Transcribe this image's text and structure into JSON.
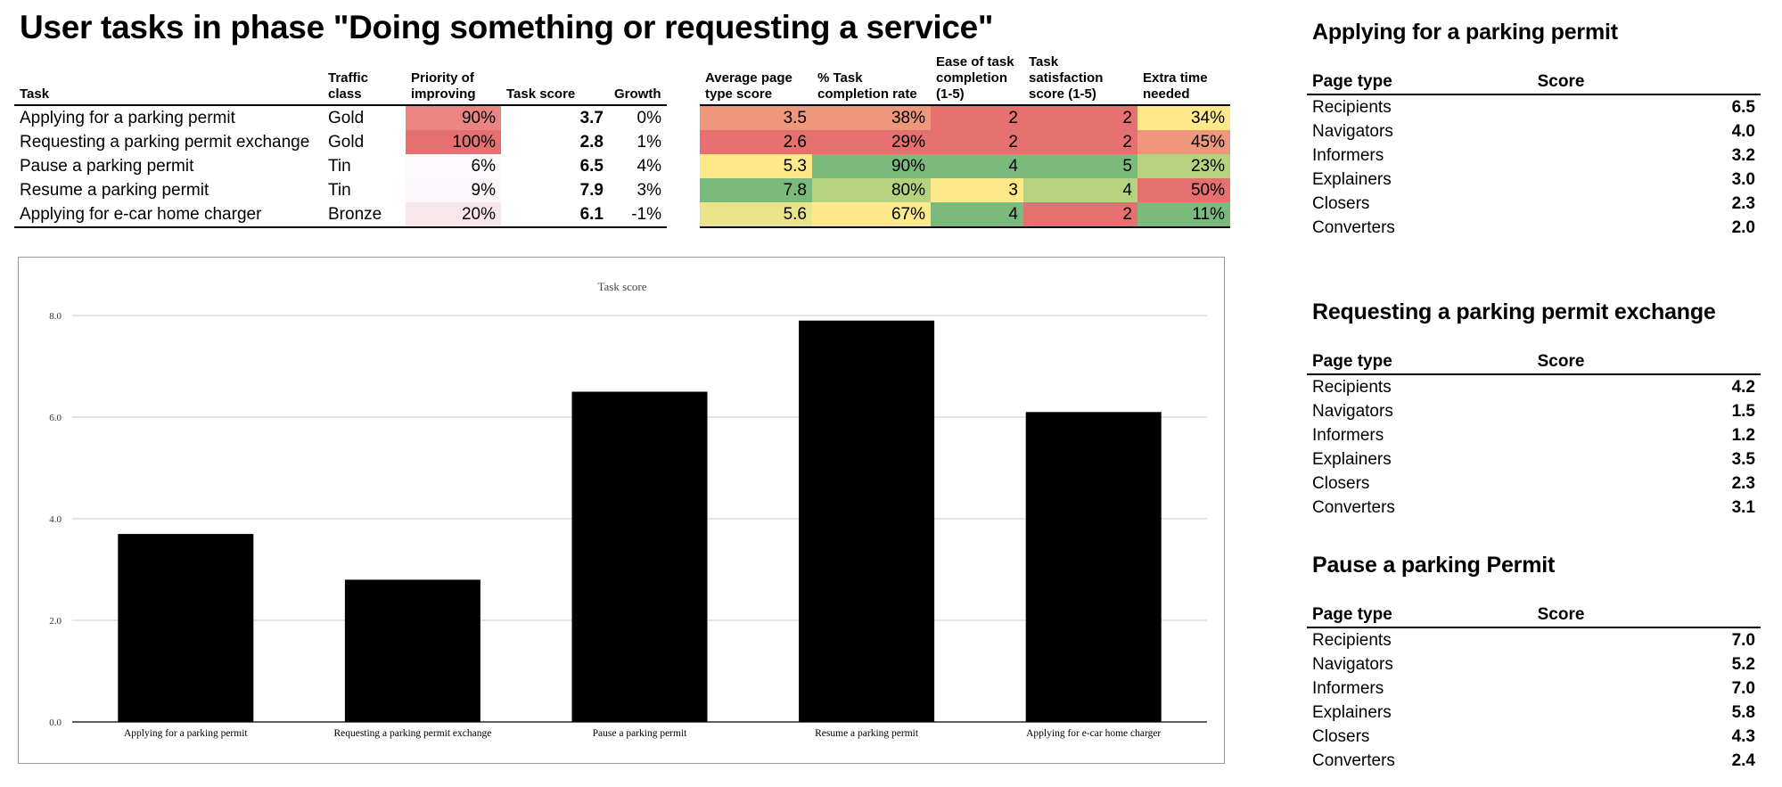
{
  "page_title": "User tasks in phase \"Doing something or requesting a service\"",
  "task_table": {
    "headers": [
      "Task",
      "Traffic class",
      "Priority of improving",
      "Task score",
      "Growth"
    ],
    "rows": [
      {
        "task": "Applying for a parking permit",
        "traffic_class": "Gold",
        "priority": "90%",
        "task_score": "3.7",
        "growth": "0%"
      },
      {
        "task": "Requesting a parking permit exchange",
        "traffic_class": "Gold",
        "priority": "100%",
        "task_score": "2.8",
        "growth": "1%"
      },
      {
        "task": "Pause a parking permit",
        "traffic_class": "Tin",
        "priority": "6%",
        "task_score": "6.5",
        "growth": "4%"
      },
      {
        "task": "Resume a parking permit",
        "traffic_class": "Tin",
        "priority": "9%",
        "task_score": "7.9",
        "growth": "3%"
      },
      {
        "task": "Applying for  e-car home charger",
        "traffic_class": "Bronze",
        "priority": "20%",
        "task_score": "6.1",
        "growth": "-1%"
      }
    ],
    "priority_colors": [
      "#ea8584",
      "#e67070",
      "#fcfafd",
      "#fbf6f9",
      "#f9e6eb"
    ]
  },
  "metric_table": {
    "headers": [
      "Average page type score",
      "% Task completion rate",
      "Ease of task completion (1-5)",
      "Task satisfaction score (1-5)",
      "Extra time needed"
    ],
    "rows": [
      [
        "3.5",
        "38%",
        "2",
        "2",
        "34%"
      ],
      [
        "2.6",
        "29%",
        "2",
        "2",
        "45%"
      ],
      [
        "5.3",
        "90%",
        "4",
        "5",
        "23%"
      ],
      [
        "7.8",
        "80%",
        "3",
        "4",
        "50%"
      ],
      [
        "5.6",
        "67%",
        "4",
        "2",
        "11%"
      ]
    ],
    "cell_colors": [
      [
        "#ee977c",
        "#ee977c",
        "#e67070",
        "#e67070",
        "#fde98a"
      ],
      [
        "#e67070",
        "#e67070",
        "#e67070",
        "#e67070",
        "#ee977c"
      ],
      [
        "#fde98a",
        "#7aba7a",
        "#7aba7a",
        "#7aba7a",
        "#b5d37f"
      ],
      [
        "#7aba7a",
        "#b5d37f",
        "#fde98a",
        "#b5d37f",
        "#e67070"
      ],
      [
        "#e9e38a",
        "#fde98a",
        "#7aba7a",
        "#e67070",
        "#7aba7a"
      ]
    ]
  },
  "chart_data": {
    "type": "bar",
    "title": "Task score",
    "categories": [
      "Applying for a parking permit",
      "Requesting a parking permit exchange",
      "Pause a parking permit",
      "Resume a parking permit",
      "Applying for  e-car home charger"
    ],
    "values": [
      3.7,
      2.8,
      6.5,
      7.9,
      6.1
    ],
    "ylim": [
      0,
      8
    ],
    "yticks": [
      "0.0",
      "2.0",
      "4.0",
      "6.0",
      "8.0"
    ],
    "grid": true,
    "bar_color": "#000000"
  },
  "breakdowns": [
    {
      "title": "Applying for a parking permit",
      "col_page_type": "Page type",
      "col_score": "Score",
      "rows": [
        {
          "page_type": "Recipients",
          "score": "6.5"
        },
        {
          "page_type": "Navigators",
          "score": "4.0"
        },
        {
          "page_type": "Informers",
          "score": "3.2"
        },
        {
          "page_type": "Explainers",
          "score": "3.0"
        },
        {
          "page_type": "Closers",
          "score": "2.3"
        },
        {
          "page_type": "Converters",
          "score": "2.0"
        }
      ]
    },
    {
      "title": "Requesting a parking permit exchange",
      "col_page_type": "Page type",
      "col_score": "Score",
      "rows": [
        {
          "page_type": "Recipients",
          "score": "4.2"
        },
        {
          "page_type": "Navigators",
          "score": "1.5"
        },
        {
          "page_type": "Informers",
          "score": "1.2"
        },
        {
          "page_type": "Explainers",
          "score": "3.5"
        },
        {
          "page_type": "Closers",
          "score": "2.3"
        },
        {
          "page_type": "Converters",
          "score": "3.1"
        }
      ]
    },
    {
      "title": "Pause a parking Permit",
      "col_page_type": "Page type",
      "col_score": "Score",
      "rows": [
        {
          "page_type": "Recipients",
          "score": "7.0"
        },
        {
          "page_type": "Navigators",
          "score": "5.2"
        },
        {
          "page_type": "Informers",
          "score": "7.0"
        },
        {
          "page_type": "Explainers",
          "score": "5.8"
        },
        {
          "page_type": "Closers",
          "score": "4.3"
        },
        {
          "page_type": "Converters",
          "score": "2.4"
        }
      ]
    }
  ]
}
